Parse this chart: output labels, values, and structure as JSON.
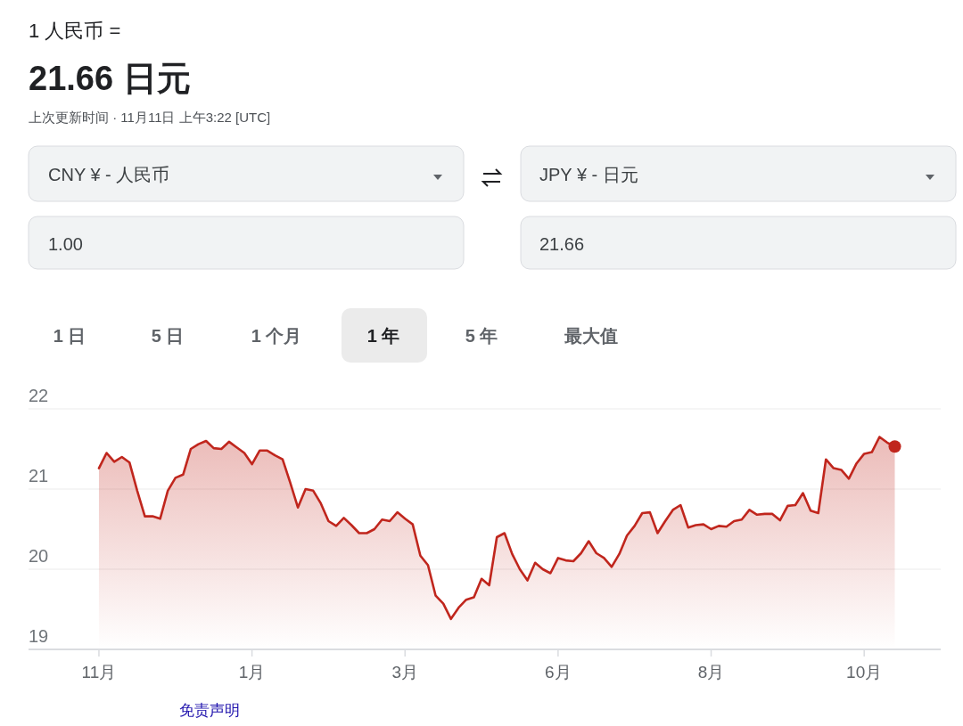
{
  "chart_data": {
    "type": "area",
    "title": "1 人民币 =",
    "subtitle": "21.66 日元",
    "annotations": [
      "上次更新时间 · 11月11日 上午3:22 [UTC]",
      "CNY ¥ - 人民币",
      "JPY ¥ - 日元",
      "1.00",
      "21.66",
      "1 日",
      "5 日",
      "1 个月",
      "1 年",
      "5 年",
      "最大值",
      "免责声明"
    ],
    "categories": [
      "11月",
      null,
      null,
      null,
      null,
      null,
      null,
      null,
      null,
      null,
      null,
      null,
      null,
      null,
      null,
      null,
      null,
      null,
      null,
      null,
      "1月",
      null,
      null,
      null,
      null,
      null,
      null,
      null,
      null,
      null,
      null,
      null,
      null,
      null,
      null,
      null,
      null,
      null,
      null,
      null,
      "3月",
      null,
      null,
      null,
      null,
      null,
      null,
      null,
      null,
      null,
      null,
      null,
      null,
      null,
      null,
      null,
      null,
      null,
      null,
      null,
      "6月",
      null,
      null,
      null,
      null,
      null,
      null,
      null,
      null,
      null,
      null,
      null,
      null,
      null,
      null,
      null,
      null,
      null,
      null,
      null,
      "8月",
      null,
      null,
      null,
      null,
      null,
      null,
      null,
      null,
      null,
      null,
      null,
      null,
      null,
      null,
      null,
      null,
      null,
      null,
      null,
      "10月",
      null,
      null,
      null,
      null
    ],
    "ylim": [
      19,
      22
    ],
    "yticks": [
      19,
      20,
      21,
      22
    ],
    "grid": "y",
    "series": [
      {
        "color": "#c0261d",
        "values": [
          21.26,
          21.45,
          21.34,
          21.4,
          21.33,
          20.98,
          20.66,
          20.66,
          20.63,
          20.98,
          21.14,
          21.18,
          21.5,
          21.56,
          21.6,
          21.51,
          21.5,
          21.59,
          21.52,
          21.45,
          21.31,
          21.48,
          21.48,
          21.42,
          21.37,
          21.08,
          20.77,
          21.0,
          20.98,
          20.82,
          20.6,
          20.54,
          20.64,
          20.55,
          20.45,
          20.45,
          20.5,
          20.62,
          20.6,
          20.71,
          20.63,
          20.56,
          20.17,
          20.05,
          19.67,
          19.57,
          19.38,
          19.52,
          19.62,
          19.65,
          19.88,
          19.8,
          20.4,
          20.45,
          20.19,
          20.0,
          19.86,
          20.08,
          20.0,
          19.95,
          20.14,
          20.11,
          20.1,
          20.2,
          20.35,
          20.2,
          20.14,
          20.03,
          20.19,
          20.42,
          20.54,
          20.7,
          20.71,
          20.45,
          20.6,
          20.74,
          20.8,
          20.52,
          20.55,
          20.56,
          20.5,
          20.54,
          20.53,
          20.6,
          20.62,
          20.74,
          20.68,
          20.69,
          20.69,
          20.61,
          20.79,
          20.8,
          20.95,
          20.73,
          20.7,
          21.37,
          21.26,
          21.24,
          21.13,
          21.32,
          21.44,
          21.46,
          21.65,
          21.58,
          21.53
        ]
      },
      {
        "type": "scatter",
        "color": "#c0261d",
        "marker": "circle",
        "values": [
          null,
          null,
          null,
          null,
          null,
          null,
          null,
          null,
          null,
          null,
          null,
          null,
          null,
          null,
          null,
          null,
          null,
          null,
          null,
          null,
          null,
          null,
          null,
          null,
          null,
          null,
          null,
          null,
          null,
          null,
          null,
          null,
          null,
          null,
          null,
          null,
          null,
          null,
          null,
          null,
          null,
          null,
          null,
          null,
          null,
          null,
          null,
          null,
          null,
          null,
          null,
          null,
          null,
          null,
          null,
          null,
          null,
          null,
          null,
          null,
          null,
          null,
          null,
          null,
          null,
          null,
          null,
          null,
          null,
          null,
          null,
          null,
          null,
          null,
          null,
          null,
          null,
          null,
          null,
          null,
          null,
          null,
          null,
          null,
          null,
          null,
          null,
          null,
          null,
          null,
          null,
          null,
          null,
          null,
          null,
          null,
          null,
          null,
          null,
          null,
          null,
          null,
          null,
          null,
          21.53
        ]
      }
    ]
  }
}
